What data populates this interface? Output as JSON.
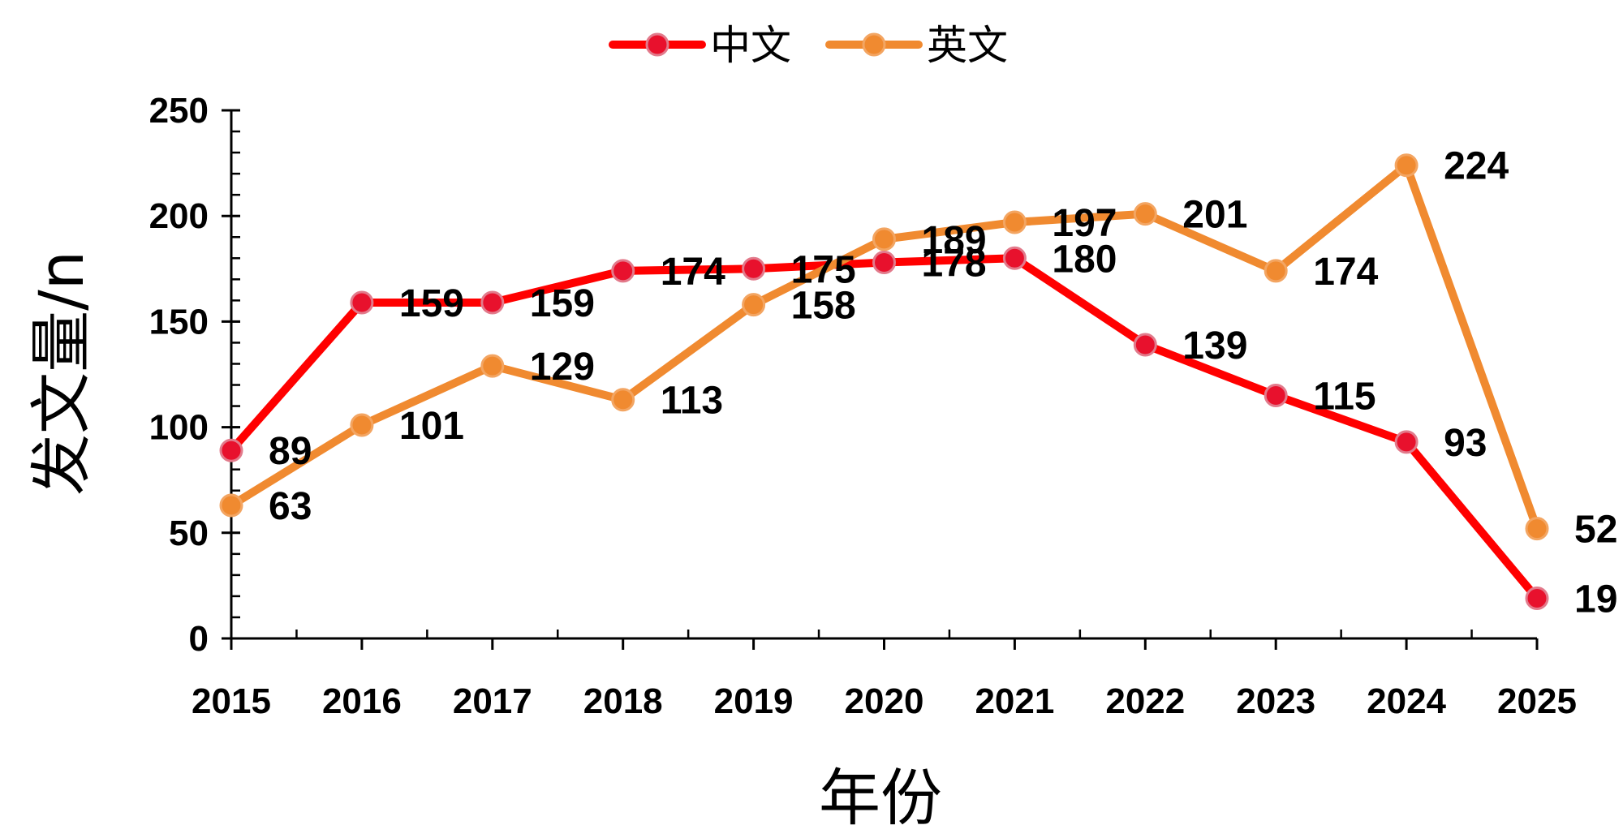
{
  "chart_data": {
    "type": "line",
    "title": "",
    "xlabel": "年份",
    "ylabel": "发文量/n",
    "categories": [
      "2015",
      "2016",
      "2017",
      "2018",
      "2019",
      "2020",
      "2021",
      "2022",
      "2023",
      "2024",
      "2025"
    ],
    "ylim": [
      0,
      250
    ],
    "yticks": [
      0,
      50,
      100,
      150,
      200,
      250
    ],
    "y_minor_step": 10,
    "grid": false,
    "legend_position": "top-center",
    "series": [
      {
        "name": "中文",
        "color": "#FF0000",
        "marker_color": "#E8112D",
        "values": [
          89,
          159,
          159,
          174,
          175,
          178,
          180,
          139,
          115,
          93,
          19
        ]
      },
      {
        "name": "英文",
        "color": "#F08A30",
        "marker_color": "#F08A30",
        "values": [
          63,
          101,
          129,
          113,
          158,
          189,
          197,
          201,
          174,
          224,
          52
        ]
      }
    ]
  }
}
